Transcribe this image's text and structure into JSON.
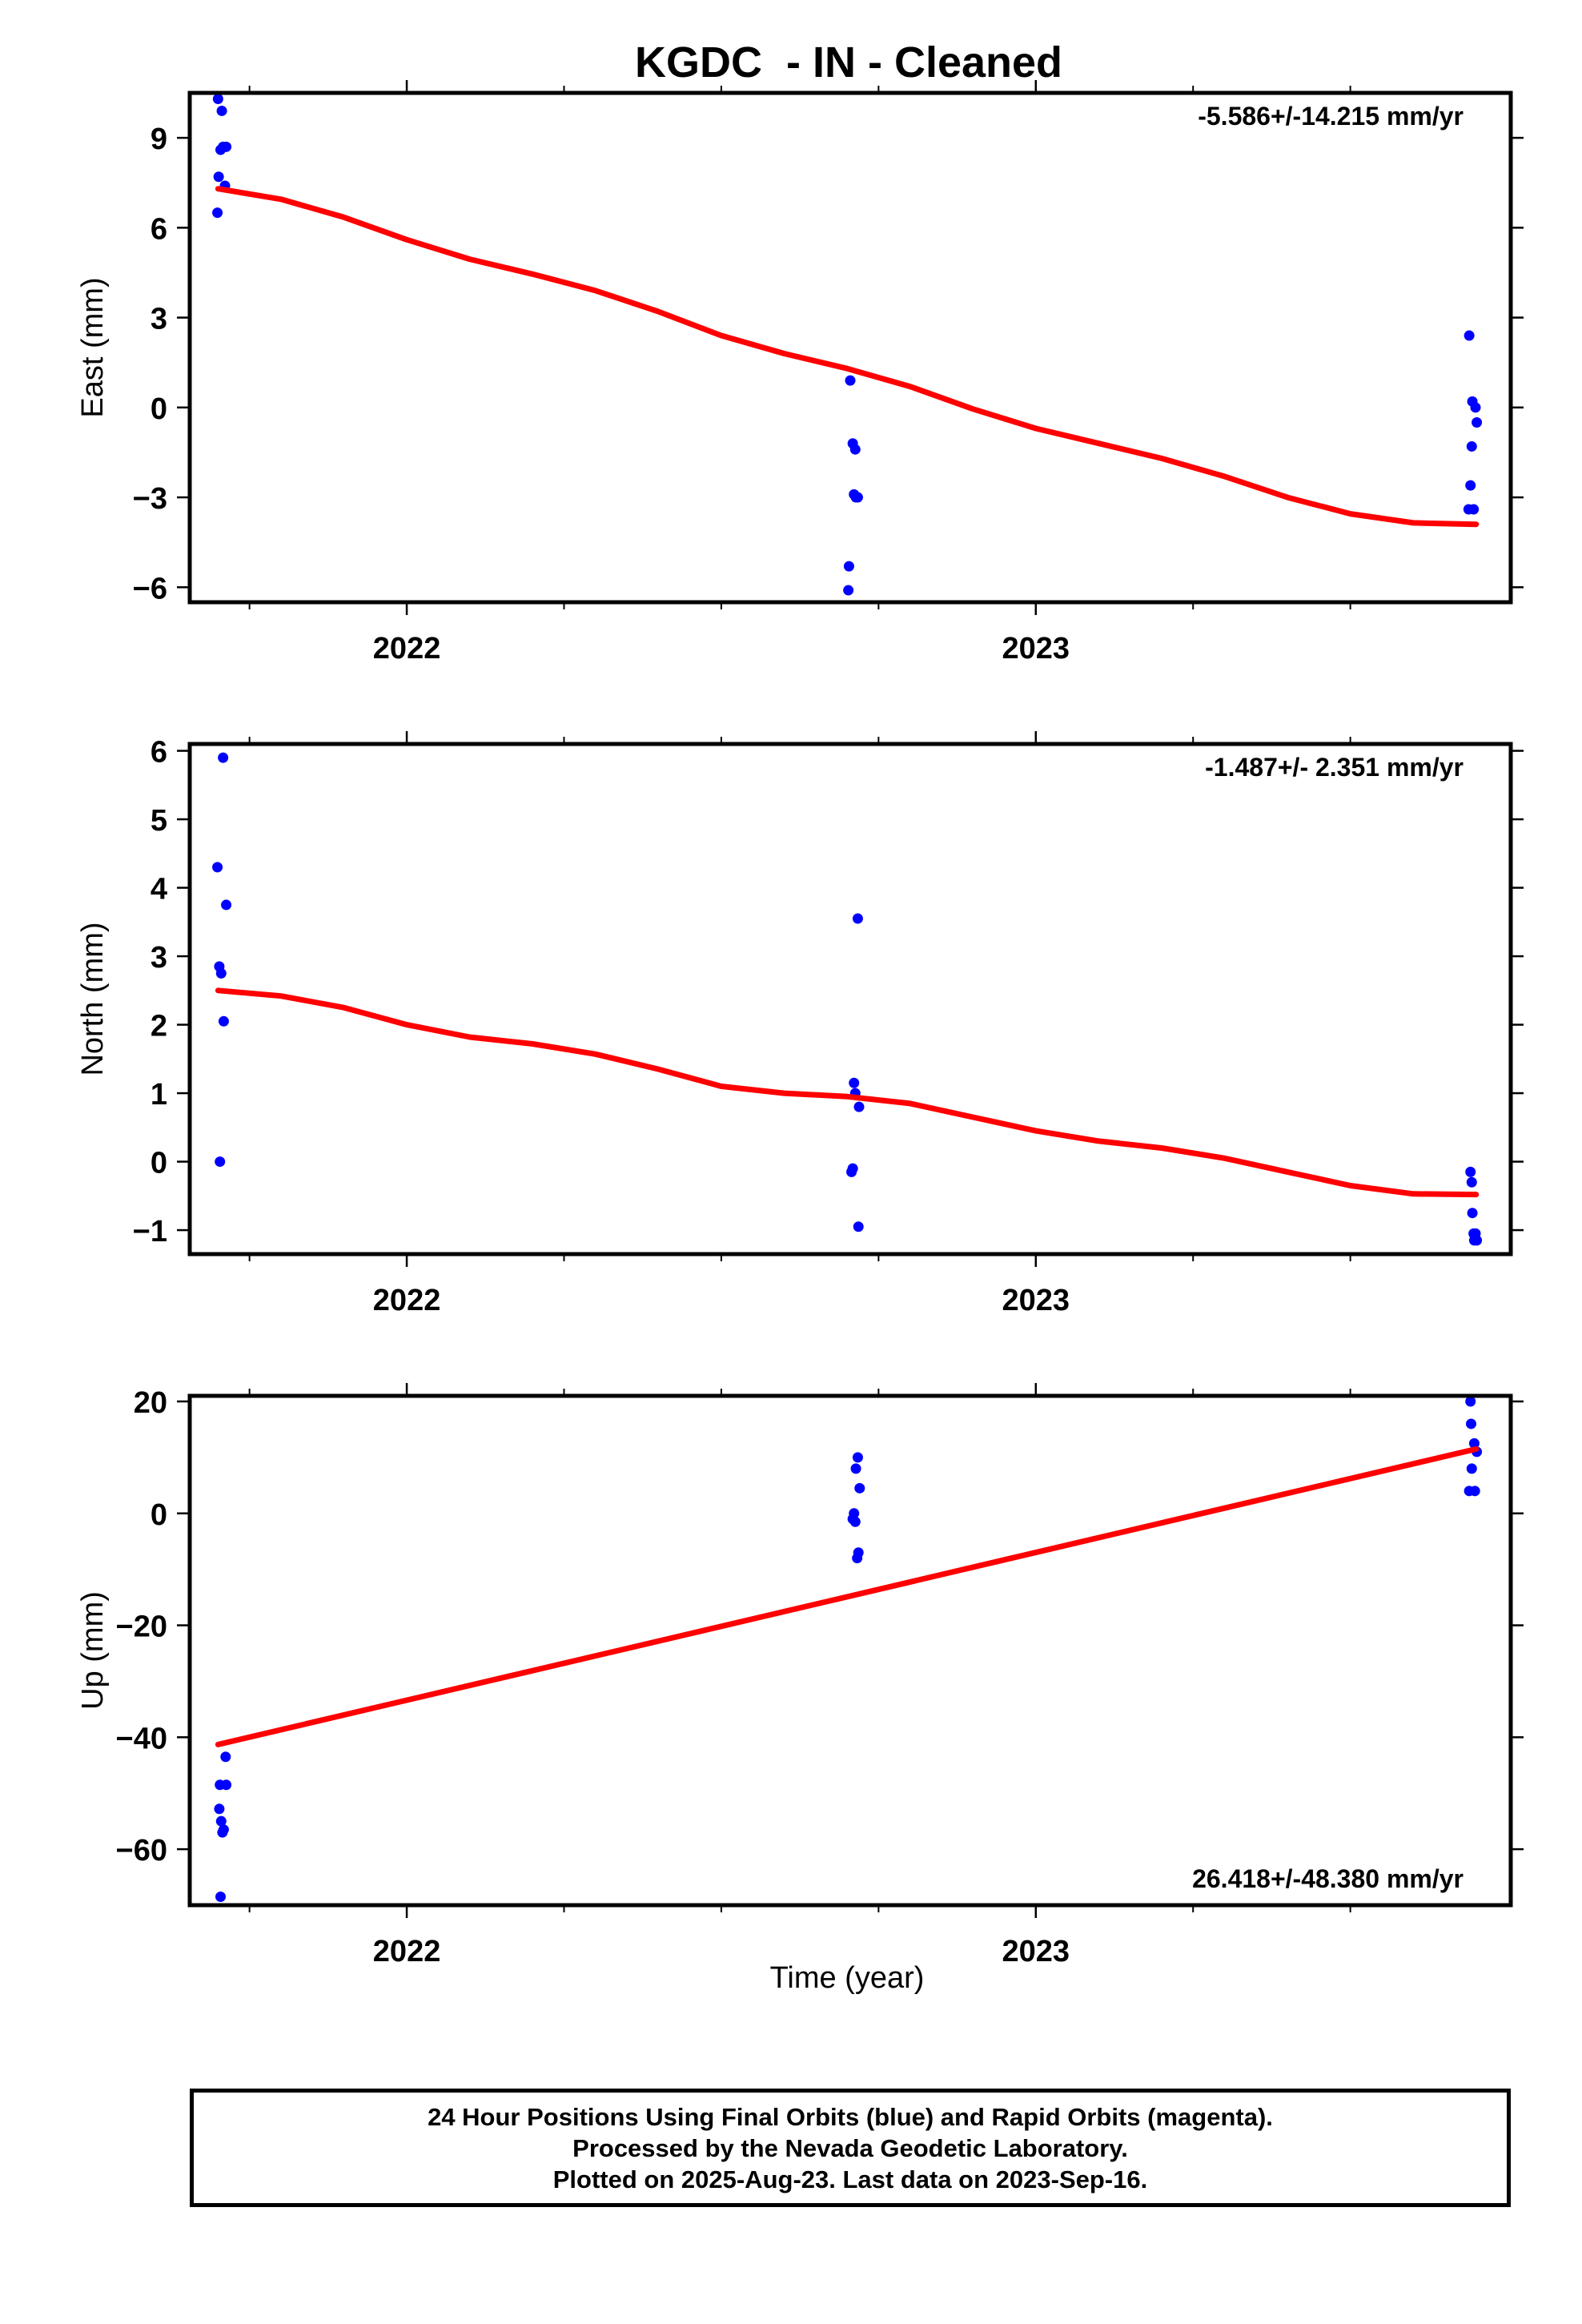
{
  "title": "KGDC  - IN - Cleaned",
  "xaxis": {
    "label": "Time (year)",
    "ticks": [
      "2022",
      "2023"
    ]
  },
  "footer": {
    "line1": "24 Hour Positions Using Final Orbits (blue) and Rapid Orbits (magenta).",
    "line2": "Processed by the Nevada Geodetic Laboratory.",
    "line3": "Plotted on 2025-Aug-23. Last data on 2023-Sep-16."
  },
  "colors": {
    "points": "#0000ff",
    "fit": "#ff0000",
    "axes": "#000000"
  },
  "chart_data": [
    {
      "type": "scatter",
      "ylabel": "East (mm)",
      "xlim": [
        2021.655,
        2023.755
      ],
      "ylim": [
        -6.5,
        10.5
      ],
      "yticks": [
        -6,
        -3,
        0,
        3,
        6,
        9
      ],
      "ytick_labels": [
        "−6",
        "−3",
        "0",
        "3",
        "6",
        "9"
      ],
      "xticks": [
        2022,
        2023
      ],
      "rate": "-5.586+/-14.215 mm/yr",
      "rate_position": "top-right",
      "grid": false,
      "points": {
        "x": [
          2021.7,
          2021.706,
          2021.708,
          2021.704,
          2021.713,
          2021.701,
          2021.711,
          2021.699,
          2022.705,
          2022.709,
          2022.713,
          2022.711,
          2022.714,
          2022.717,
          2022.703,
          2022.702,
          2023.689,
          2023.694,
          2023.699,
          2023.701,
          2023.693,
          2023.691,
          2023.696,
          2023.688
        ],
        "y": [
          10.3,
          9.9,
          8.7,
          8.6,
          8.7,
          7.7,
          7.4,
          6.5,
          0.9,
          -1.2,
          -1.4,
          -2.9,
          -3.0,
          -3.0,
          -5.3,
          -6.1,
          2.4,
          0.2,
          0.0,
          -0.5,
          -1.3,
          -2.6,
          -3.4,
          -3.4
        ]
      },
      "fit": {
        "x": [
          2021.7,
          2021.8,
          2021.9,
          2022.0,
          2022.1,
          2022.2,
          2022.3,
          2022.4,
          2022.5,
          2022.6,
          2022.7,
          2022.8,
          2022.9,
          2023.0,
          2023.1,
          2023.2,
          2023.3,
          2023.4,
          2023.5,
          2023.6,
          2023.7
        ],
        "y": [
          7.3,
          6.95,
          6.35,
          5.6,
          4.95,
          4.45,
          3.9,
          3.2,
          2.4,
          1.8,
          1.3,
          0.7,
          -0.05,
          -0.7,
          -1.2,
          -1.7,
          -2.3,
          -3.0,
          -3.55,
          -3.85,
          -3.9
        ]
      }
    },
    {
      "type": "scatter",
      "ylabel": "North (mm)",
      "xlim": [
        2021.655,
        2023.755
      ],
      "ylim": [
        -1.35,
        6.1
      ],
      "yticks": [
        -1,
        0,
        1,
        2,
        3,
        4,
        5,
        6
      ],
      "ytick_labels": [
        "−1",
        "0",
        "1",
        "2",
        "3",
        "4",
        "5",
        "6"
      ],
      "xticks": [
        2022,
        2023
      ],
      "rate": "-1.487+/- 2.351 mm/yr",
      "rate_position": "top-right",
      "grid": false,
      "points": {
        "x": [
          2021.708,
          2021.699,
          2021.713,
          2021.702,
          2021.705,
          2021.709,
          2021.703,
          2022.717,
          2022.711,
          2022.713,
          2022.719,
          2022.709,
          2022.707,
          2022.718,
          2023.691,
          2023.693,
          2023.694,
          2023.696,
          2023.699,
          2023.697,
          2023.701
        ],
        "y": [
          5.9,
          4.3,
          3.75,
          2.85,
          2.75,
          2.05,
          0.0,
          3.55,
          1.15,
          1.0,
          0.8,
          -0.1,
          -0.15,
          -0.95,
          -0.15,
          -0.3,
          -0.75,
          -1.05,
          -1.05,
          -1.15,
          -1.15
        ]
      },
      "fit": {
        "x": [
          2021.7,
          2021.8,
          2021.9,
          2022.0,
          2022.1,
          2022.2,
          2022.3,
          2022.4,
          2022.5,
          2022.6,
          2022.7,
          2022.8,
          2022.9,
          2023.0,
          2023.1,
          2023.2,
          2023.3,
          2023.4,
          2023.5,
          2023.6,
          2023.7
        ],
        "y": [
          2.5,
          2.42,
          2.25,
          2.0,
          1.82,
          1.72,
          1.57,
          1.35,
          1.1,
          1.0,
          0.95,
          0.85,
          0.65,
          0.45,
          0.3,
          0.2,
          0.05,
          -0.15,
          -0.35,
          -0.47,
          -0.48
        ]
      }
    },
    {
      "type": "scatter",
      "ylabel": "Up (mm)",
      "xlim": [
        2021.655,
        2023.755
      ],
      "ylim": [
        -70,
        21
      ],
      "yticks": [
        -60,
        -40,
        -20,
        0,
        20
      ],
      "ytick_labels": [
        "−60",
        "−40",
        "−20",
        "0",
        "20"
      ],
      "xticks": [
        2022,
        2023
      ],
      "rate": "26.418+/-48.380 mm/yr",
      "rate_position": "bottom-right",
      "grid": false,
      "points": {
        "x": [
          2021.712,
          2021.703,
          2021.713,
          2021.702,
          2021.705,
          2021.709,
          2021.707,
          2021.704,
          2022.717,
          2022.714,
          2022.72,
          2022.711,
          2022.713,
          2022.709,
          2022.718,
          2022.716,
          2023.691,
          2023.692,
          2023.697,
          2023.701,
          2023.693,
          2023.689,
          2023.698
        ],
        "y": [
          -43.5,
          -48.5,
          -48.5,
          -52.8,
          -55.0,
          -56.5,
          -57.0,
          -68.5,
          10.0,
          8.0,
          4.5,
          0.0,
          -1.5,
          -1.0,
          -7.0,
          -8.0,
          20.0,
          16.0,
          12.5,
          11.0,
          8.0,
          4.0,
          4.0
        ]
      },
      "fit": {
        "x": [
          2021.7,
          2023.7
        ],
        "y": [
          -41.3,
          11.5
        ]
      }
    }
  ]
}
